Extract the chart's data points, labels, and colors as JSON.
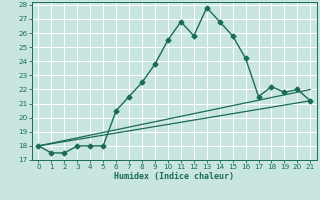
{
  "xlabel": "Humidex (Indice chaleur)",
  "background_color": "#c8e6df",
  "grid_color": "#ffffff",
  "line_color": "#1a6b5a",
  "xlim": [
    -0.5,
    21.5
  ],
  "ylim": [
    17,
    28.2
  ],
  "xticks": [
    0,
    1,
    2,
    3,
    4,
    5,
    6,
    7,
    8,
    9,
    10,
    11,
    12,
    13,
    14,
    15,
    16,
    17,
    18,
    19,
    20,
    21
  ],
  "yticks": [
    17,
    18,
    19,
    20,
    21,
    22,
    23,
    24,
    25,
    26,
    27,
    28
  ],
  "line1_x": [
    0,
    1,
    2,
    3,
    4,
    5,
    6,
    7,
    8,
    9,
    10,
    11,
    12,
    13,
    14,
    15,
    16,
    17,
    18,
    19,
    20,
    21
  ],
  "line1_y": [
    18.0,
    17.5,
    17.5,
    18.0,
    18.0,
    18.0,
    20.5,
    21.5,
    22.5,
    23.8,
    25.5,
    26.8,
    25.8,
    27.8,
    26.8,
    25.8,
    24.2,
    21.5,
    22.2,
    21.8,
    22.0,
    21.2
  ],
  "line2_x": [
    0,
    21
  ],
  "line2_y": [
    18.0,
    21.2
  ],
  "line3_x": [
    0,
    21
  ],
  "line3_y": [
    18.0,
    22.0
  ]
}
